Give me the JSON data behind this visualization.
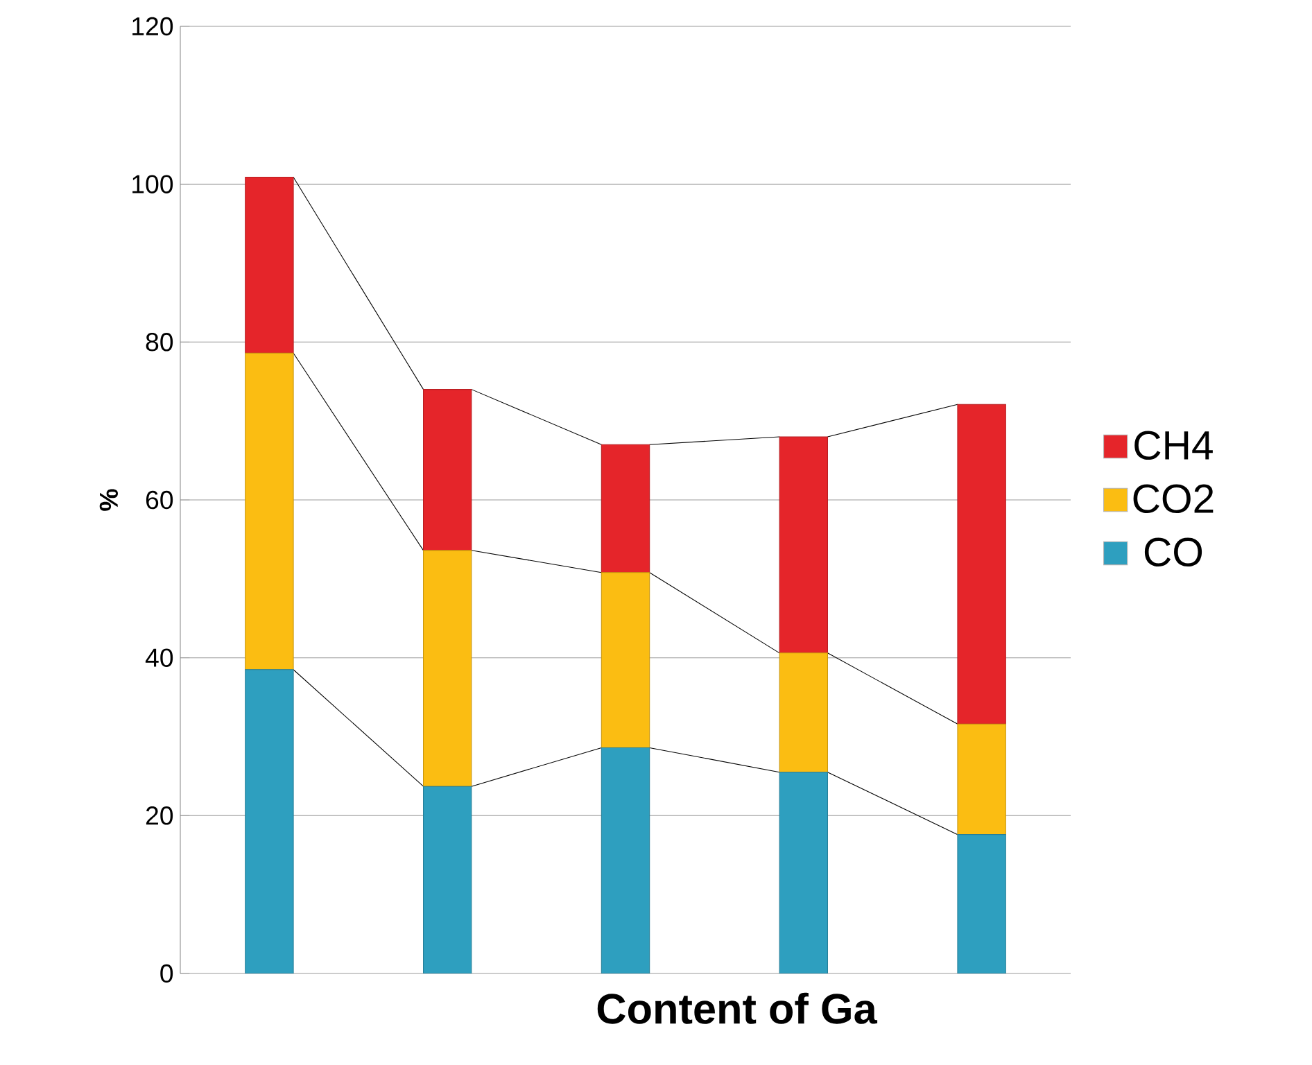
{
  "chart_data": {
    "type": "bar",
    "stacked": true,
    "xlabel": "Content of Ga",
    "ylabel": "%",
    "categories": [
      null,
      null,
      null,
      null,
      null
    ],
    "series": [
      {
        "name": "CO",
        "color": "#2e9fbf",
        "values": [
          38.5,
          23.7,
          28.6,
          25.5,
          17.6
        ]
      },
      {
        "name": "CO2",
        "color": "#fbbd12",
        "values": [
          40.1,
          29.9,
          22.2,
          15.1,
          14.0
        ]
      },
      {
        "name": "CH4",
        "color": "#e5252a",
        "values": [
          22.3,
          20.4,
          16.2,
          27.4,
          40.5
        ]
      }
    ],
    "ylim": [
      0,
      120
    ],
    "yticks": [
      0,
      20,
      40,
      60,
      80,
      100,
      120
    ],
    "grid": "y",
    "legend": "right"
  }
}
